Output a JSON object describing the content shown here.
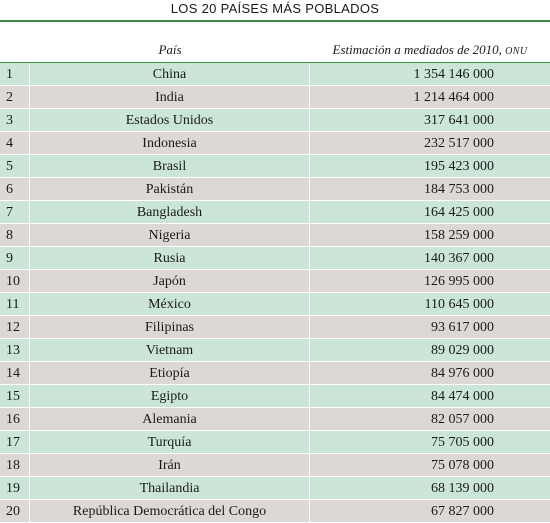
{
  "title": "LOS 20 PAÍSES MÁS POBLADOS",
  "columns": {
    "country": "País",
    "estimate": "Estimación a mediados de 2010,",
    "estimate_source": "ONU"
  },
  "rows": [
    {
      "rank": "1",
      "country": "China",
      "population": "1 354 146 000"
    },
    {
      "rank": "2",
      "country": "India",
      "population": "1 214 464 000"
    },
    {
      "rank": "3",
      "country": "Estados Unidos",
      "population": "317 641 000"
    },
    {
      "rank": "4",
      "country": "Indonesia",
      "population": "232 517 000"
    },
    {
      "rank": "5",
      "country": "Brasil",
      "population": "195 423 000"
    },
    {
      "rank": "6",
      "country": "Pakistán",
      "population": "184 753 000"
    },
    {
      "rank": "7",
      "country": "Bangladesh",
      "population": "164 425 000"
    },
    {
      "rank": "8",
      "country": "Nigeria",
      "population": "158 259 000"
    },
    {
      "rank": "9",
      "country": "Rusia",
      "population": "140 367 000"
    },
    {
      "rank": "10",
      "country": "Japón",
      "population": "126 995 000"
    },
    {
      "rank": "11",
      "country": "México",
      "population": "110 645 000"
    },
    {
      "rank": "12",
      "country": "Filipinas",
      "population": "93 617 000"
    },
    {
      "rank": "13",
      "country": "Vietnam",
      "population": "89 029 000"
    },
    {
      "rank": "14",
      "country": "Etiopía",
      "population": "84 976 000"
    },
    {
      "rank": "15",
      "country": "Egipto",
      "population": "84 474 000"
    },
    {
      "rank": "16",
      "country": "Alemania",
      "population": "82 057 000"
    },
    {
      "rank": "17",
      "country": "Turquía",
      "population": "75 705 000"
    },
    {
      "rank": "18",
      "country": "Irán",
      "population": "75 078 000"
    },
    {
      "rank": "19",
      "country": "Thailandia",
      "population": "68 139 000"
    },
    {
      "rank": "20",
      "country": "República Democrática del Congo",
      "population": "67 827 000"
    }
  ],
  "colors": {
    "accent_rule": "#3d8a45",
    "row_green": "#cbe6d6",
    "row_gray": "#ddd8d3"
  }
}
